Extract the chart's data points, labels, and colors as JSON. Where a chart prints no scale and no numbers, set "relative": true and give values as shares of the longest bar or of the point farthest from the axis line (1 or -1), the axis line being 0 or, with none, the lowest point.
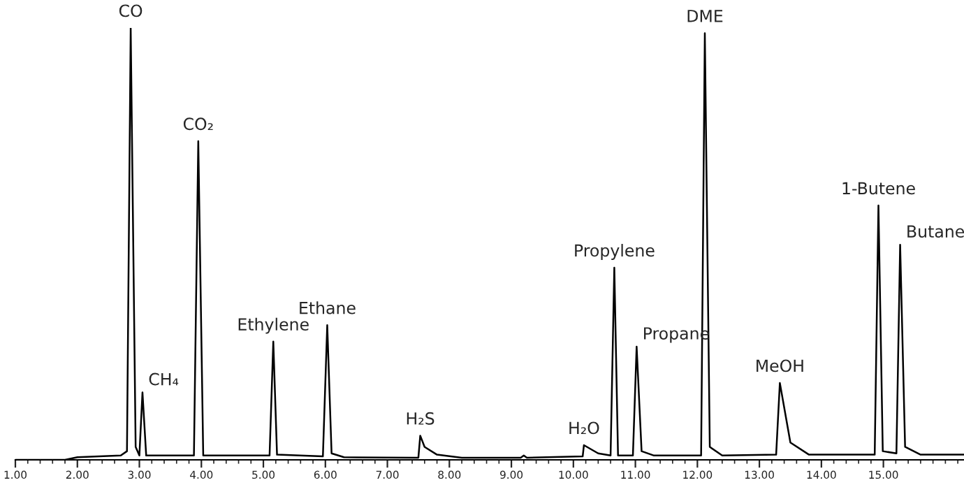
{
  "chart_data": {
    "type": "line",
    "relative": true,
    "tick_labels": "x",
    "grid": false,
    "legend": false,
    "marker": "none",
    "line_style": "solid",
    "xlim": [
      1.0,
      16.3
    ],
    "xticks": [
      {
        "value": 1,
        "label": "1.00"
      },
      {
        "value": 2,
        "label": "2.00"
      },
      {
        "value": 3,
        "label": "3.00"
      },
      {
        "value": 4,
        "label": "4.00"
      },
      {
        "value": 5,
        "label": "5.00"
      },
      {
        "value": 6,
        "label": "6.00"
      },
      {
        "value": 7,
        "label": "7.00"
      },
      {
        "value": 8,
        "label": "8.00"
      },
      {
        "value": 9,
        "label": "9.00"
      },
      {
        "value": 10,
        "label": "10.00"
      },
      {
        "value": 11,
        "label": "11.00"
      },
      {
        "value": 12,
        "label": "12.00"
      },
      {
        "value": 13,
        "label": "13.00"
      },
      {
        "value": 14,
        "label": "14.00"
      },
      {
        "value": 15,
        "label": "15.00"
      },
      {
        "value": 1.2,
        "label": null
      },
      {
        "value": 1.4,
        "label": null
      },
      {
        "value": 1.6,
        "label": null
      },
      {
        "value": 1.8,
        "label": null
      },
      {
        "value": 2.2,
        "label": null
      },
      {
        "value": 2.4,
        "label": null
      },
      {
        "value": 2.6,
        "label": null
      },
      {
        "value": 2.8,
        "label": null
      },
      {
        "value": 3.2,
        "label": null
      },
      {
        "value": 3.4,
        "label": null
      },
      {
        "value": 3.6,
        "label": null
      },
      {
        "value": 3.8,
        "label": null
      },
      {
        "value": 4.2,
        "label": null
      },
      {
        "value": 4.4,
        "label": null
      },
      {
        "value": 4.6,
        "label": null
      },
      {
        "value": 4.8,
        "label": null
      },
      {
        "value": 5.2,
        "label": null
      },
      {
        "value": 5.4,
        "label": null
      },
      {
        "value": 5.6,
        "label": null
      },
      {
        "value": 5.8,
        "label": null
      },
      {
        "value": 6.2,
        "label": null
      },
      {
        "value": 6.4,
        "label": null
      },
      {
        "value": 6.6,
        "label": null
      },
      {
        "value": 6.8,
        "label": null
      },
      {
        "value": 7.2,
        "label": null
      },
      {
        "value": 7.4,
        "label": null
      },
      {
        "value": 7.6,
        "label": null
      },
      {
        "value": 7.8,
        "label": null
      },
      {
        "value": 8.2,
        "label": null
      },
      {
        "value": 8.4,
        "label": null
      },
      {
        "value": 8.6,
        "label": null
      },
      {
        "value": 8.8,
        "label": null
      },
      {
        "value": 9.2,
        "label": null
      },
      {
        "value": 9.4,
        "label": null
      },
      {
        "value": 9.6,
        "label": null
      },
      {
        "value": 9.8,
        "label": null
      },
      {
        "value": 10.2,
        "label": null
      },
      {
        "value": 10.4,
        "label": null
      },
      {
        "value": 10.6,
        "label": null
      },
      {
        "value": 10.8,
        "label": null
      },
      {
        "value": 11.2,
        "label": null
      },
      {
        "value": 11.4,
        "label": null
      },
      {
        "value": 11.6,
        "label": null
      },
      {
        "value": 11.8,
        "label": null
      },
      {
        "value": 12.2,
        "label": null
      },
      {
        "value": 12.4,
        "label": null
      },
      {
        "value": 12.6,
        "label": null
      },
      {
        "value": 12.8,
        "label": null
      },
      {
        "value": 13.2,
        "label": null
      },
      {
        "value": 13.4,
        "label": null
      },
      {
        "value": 13.6,
        "label": null
      },
      {
        "value": 13.8,
        "label": null
      },
      {
        "value": 14.2,
        "label": null
      },
      {
        "value": 14.4,
        "label": null
      },
      {
        "value": 14.6,
        "label": null
      },
      {
        "value": 14.8,
        "label": null
      },
      {
        "value": 15.2,
        "label": null
      },
      {
        "value": 15.4,
        "label": null
      },
      {
        "value": 15.6,
        "label": null
      },
      {
        "value": 15.8,
        "label": null
      },
      {
        "value": 16.0,
        "label": null
      },
      {
        "value": 16.2,
        "label": null
      }
    ],
    "series": [
      {
        "color": "#000000",
        "x": [
          1.0,
          1.8,
          2.0,
          2.7,
          2.8,
          2.86,
          2.94,
          3.0,
          3.05,
          3.11,
          3.88,
          3.95,
          4.03,
          5.1,
          5.16,
          5.22,
          5.96,
          6.03,
          6.1,
          6.3,
          7.5,
          7.53,
          7.6,
          7.8,
          8.2,
          9.15,
          9.2,
          9.25,
          10.15,
          10.17,
          10.4,
          10.6,
          10.66,
          10.72,
          10.96,
          11.02,
          11.1,
          11.3,
          12.06,
          12.12,
          12.2,
          12.4,
          13.27,
          13.33,
          13.5,
          13.8,
          14.86,
          14.92,
          14.99,
          15.21,
          15.27,
          15.35,
          15.6,
          16.3
        ],
        "values": [
          0.0,
          0.0,
          0.006,
          0.01,
          0.02,
          1.0,
          0.03,
          0.01,
          0.156,
          0.01,
          0.01,
          0.738,
          0.01,
          0.01,
          0.274,
          0.012,
          0.008,
          0.312,
          0.015,
          0.006,
          0.005,
          0.056,
          0.03,
          0.012,
          0.005,
          0.005,
          0.01,
          0.005,
          0.008,
          0.034,
          0.015,
          0.01,
          0.445,
          0.01,
          0.01,
          0.262,
          0.02,
          0.01,
          0.01,
          0.988,
          0.03,
          0.01,
          0.012,
          0.178,
          0.04,
          0.012,
          0.012,
          0.589,
          0.02,
          0.015,
          0.498,
          0.03,
          0.012,
          0.012
        ]
      }
    ],
    "annotations": [
      {
        "text": "CO",
        "x": 2.86,
        "y": 1.0
      },
      {
        "text": "CH₄",
        "x": 3.05,
        "y": 0.156
      },
      {
        "text": "CO₂",
        "x": 3.95,
        "y": 0.738
      },
      {
        "text": "Ethylene",
        "x": 5.16,
        "y": 0.274
      },
      {
        "text": "Ethane",
        "x": 6.03,
        "y": 0.312
      },
      {
        "text": "H₂S",
        "x": 7.53,
        "y": 0.056
      },
      {
        "text": "H₂O",
        "x": 10.17,
        "y": 0.034
      },
      {
        "text": "Propylene",
        "x": 10.66,
        "y": 0.445
      },
      {
        "text": "Propane",
        "x": 11.02,
        "y": 0.262
      },
      {
        "text": "DME",
        "x": 12.12,
        "y": 0.988
      },
      {
        "text": "MeOH",
        "x": 13.33,
        "y": 0.178
      },
      {
        "text": "1-Butene",
        "x": 14.92,
        "y": 0.589
      },
      {
        "text": "Butane",
        "x": 15.27,
        "y": 0.498
      }
    ]
  }
}
